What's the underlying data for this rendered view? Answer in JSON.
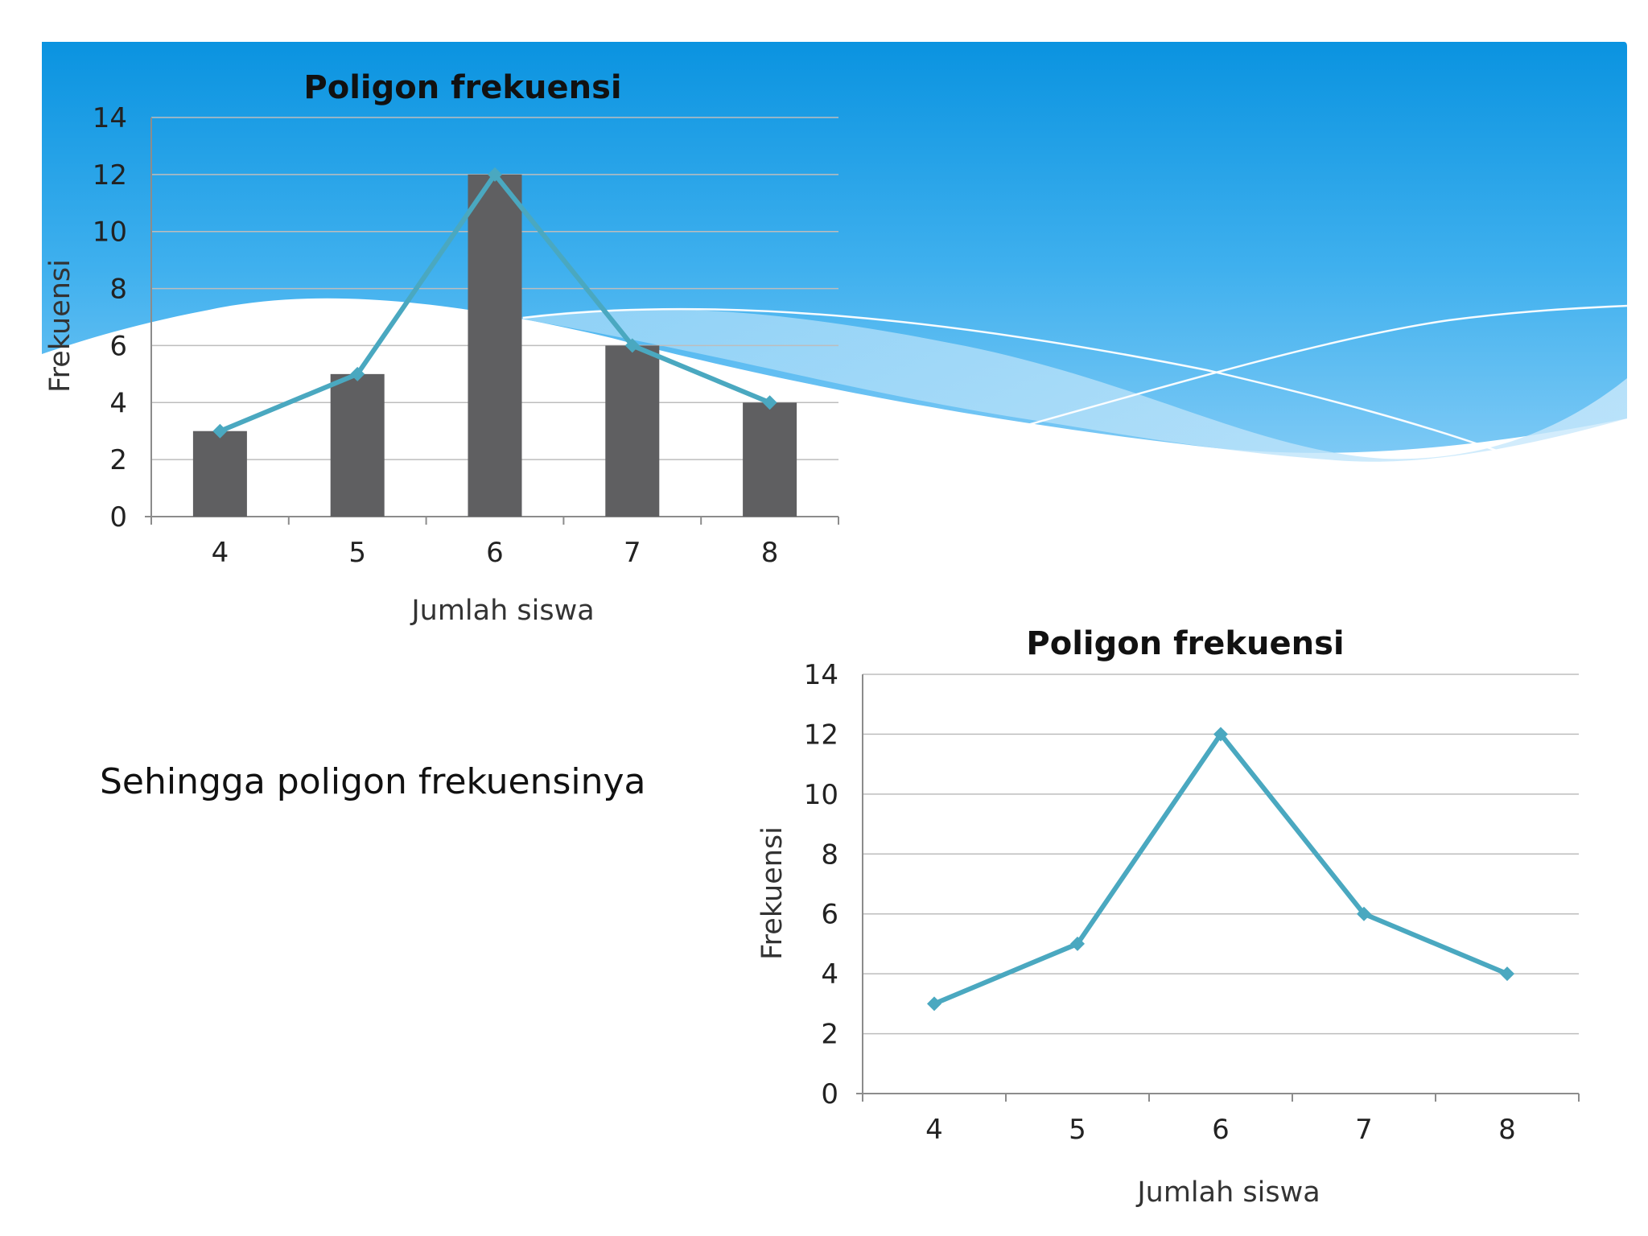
{
  "caption": "Sehingga poligon frekuensinya",
  "colors": {
    "bar": "#5f5f61",
    "line": "#4aa8c0",
    "grid": "#bdbdbd",
    "axis": "#8c8c8c",
    "text": "#222222",
    "band_top": "#0a93e0"
  },
  "chart_data": [
    {
      "type": "bar",
      "title": "Poligon frekuensi",
      "xlabel": "Jumlah siswa",
      "ylabel": "Frekuensi",
      "categories": [
        "4",
        "5",
        "6",
        "7",
        "8"
      ],
      "ylim": [
        0,
        14
      ],
      "yticks": [
        "0",
        "2",
        "4",
        "6",
        "8",
        "10",
        "12",
        "14"
      ],
      "grid": true,
      "series": [
        {
          "type": "bar",
          "values": [
            3,
            5,
            12,
            6,
            4
          ]
        },
        {
          "type": "line",
          "values": [
            3,
            5,
            12,
            6,
            4
          ]
        }
      ]
    },
    {
      "type": "line",
      "title": "Poligon frekuensi",
      "xlabel": "Jumlah siswa",
      "ylabel": "Frekuensi",
      "categories": [
        "4",
        "5",
        "6",
        "7",
        "8"
      ],
      "ylim": [
        0,
        14
      ],
      "yticks": [
        "0",
        "2",
        "4",
        "6",
        "8",
        "10",
        "12",
        "14"
      ],
      "grid": true,
      "series": [
        {
          "type": "line",
          "values": [
            3,
            5,
            12,
            6,
            4
          ]
        }
      ]
    }
  ]
}
